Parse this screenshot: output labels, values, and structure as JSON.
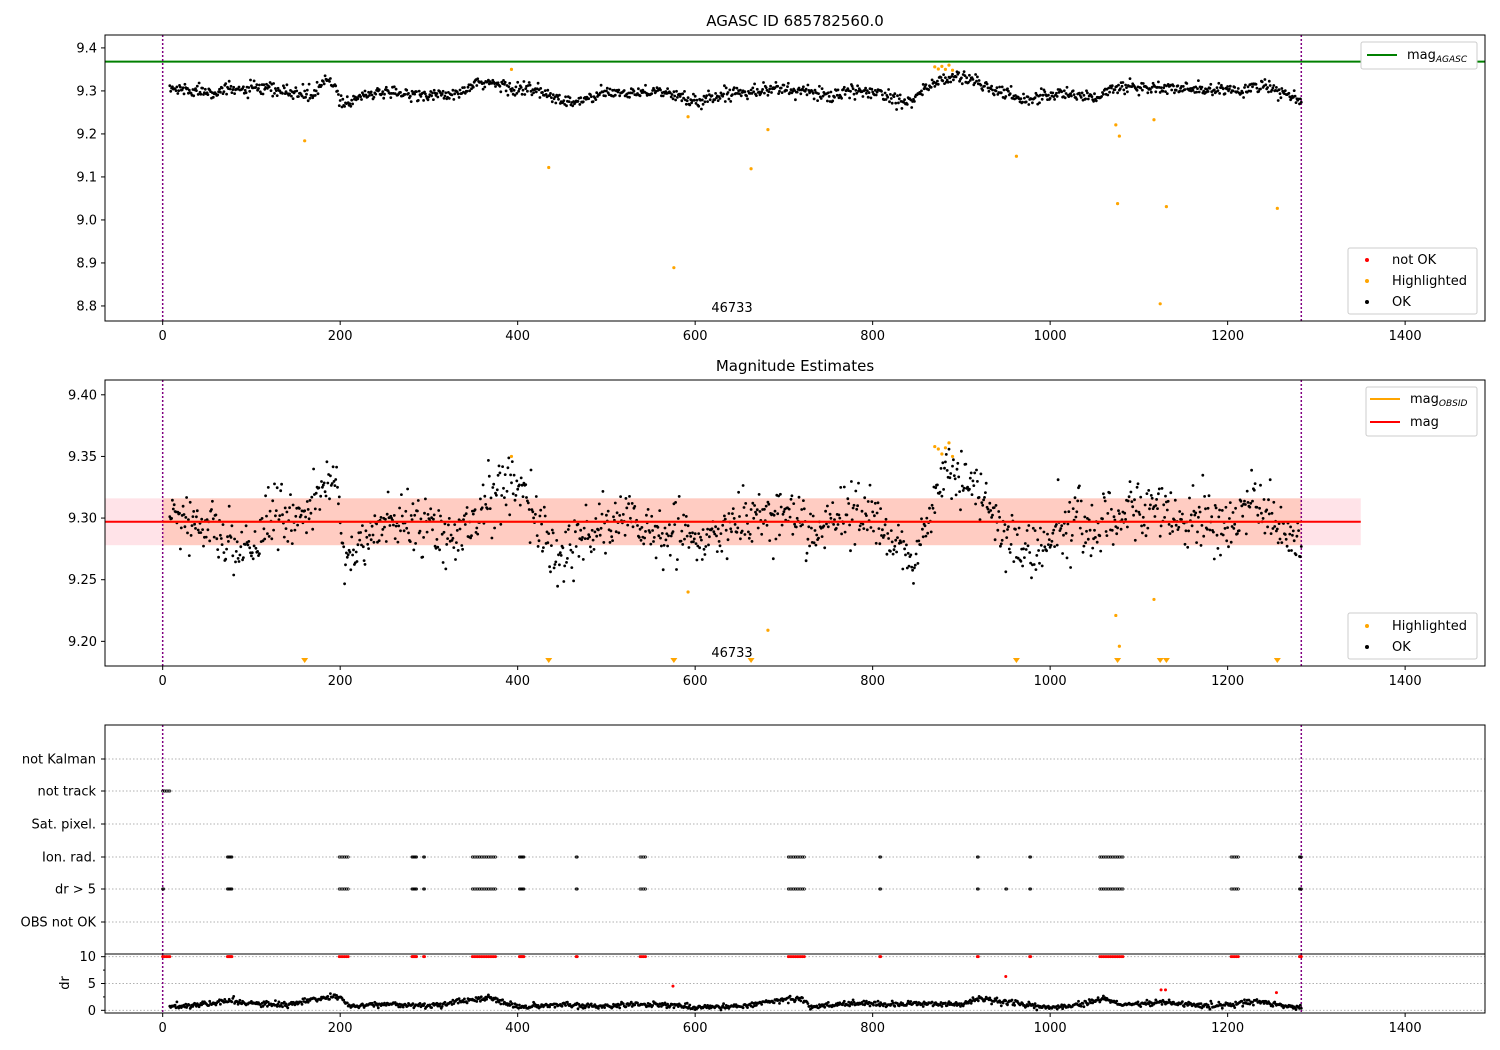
{
  "chart_data": [
    {
      "type": "scatter",
      "title": "AGASC ID 685782560.0",
      "xlim": [
        -65,
        1490
      ],
      "ylim": [
        8.765,
        9.43
      ],
      "xticks": [
        0,
        200,
        400,
        600,
        800,
        1000,
        1200,
        1400
      ],
      "yticks": [
        8.8,
        8.9,
        9.0,
        9.1,
        9.2,
        9.3,
        9.4
      ],
      "obs_boundaries": [
        0,
        1283
      ],
      "obs_label": {
        "text": "46733",
        "x": 640,
        "y": 8.78
      },
      "hlines": [
        {
          "name": "mag_AGASC",
          "y": 9.368,
          "color": "#008000"
        }
      ],
      "ok_series": {
        "name": "OK",
        "color": "#000000",
        "segments": [
          [
            5,
            9.305,
            0.01
          ],
          [
            60,
            9.3,
            0.01
          ],
          [
            110,
            9.305,
            0.01
          ],
          [
            170,
            9.29,
            0.01
          ],
          [
            185,
            9.33,
            0.008
          ],
          [
            205,
            9.27,
            0.01
          ],
          [
            230,
            9.295,
            0.008
          ],
          [
            330,
            9.29,
            0.008
          ],
          [
            360,
            9.32,
            0.01
          ],
          [
            420,
            9.3,
            0.012
          ],
          [
            460,
            9.27,
            0.01
          ],
          [
            500,
            9.295,
            0.008
          ],
          [
            560,
            9.3,
            0.008
          ],
          [
            600,
            9.275,
            0.01
          ],
          [
            650,
            9.3,
            0.01
          ],
          [
            700,
            9.305,
            0.01
          ],
          [
            750,
            9.29,
            0.01
          ],
          [
            800,
            9.3,
            0.01
          ],
          [
            840,
            9.275,
            0.01
          ],
          [
            870,
            9.32,
            0.01
          ],
          [
            900,
            9.335,
            0.01
          ],
          [
            940,
            9.3,
            0.01
          ],
          [
            970,
            9.28,
            0.01
          ],
          [
            1010,
            9.295,
            0.01
          ],
          [
            1050,
            9.285,
            0.01
          ],
          [
            1080,
            9.31,
            0.01
          ],
          [
            1140,
            9.305,
            0.01
          ],
          [
            1200,
            9.3,
            0.01
          ],
          [
            1240,
            9.31,
            0.01
          ],
          [
            1270,
            9.29,
            0.01
          ],
          [
            1283,
            9.27,
            0.008
          ]
        ]
      },
      "not_ok_series": {
        "name": "not OK",
        "color": "#ff0000",
        "points": []
      },
      "highlighted_series": {
        "name": "Highlighted",
        "color": "#ffa500",
        "points": [
          [
            160,
            9.184
          ],
          [
            393,
            9.35
          ],
          [
            435,
            9.122
          ],
          [
            576,
            8.889
          ],
          [
            592,
            9.24
          ],
          [
            663,
            9.119
          ],
          [
            682,
            9.21
          ],
          [
            870,
            9.356
          ],
          [
            874,
            9.351
          ],
          [
            878,
            9.357
          ],
          [
            882,
            9.35
          ],
          [
            886,
            9.36
          ],
          [
            890,
            9.348
          ],
          [
            962,
            9.148
          ],
          [
            1074,
            9.221
          ],
          [
            1076,
            9.038
          ],
          [
            1078,
            9.195
          ],
          [
            1117,
            9.233
          ],
          [
            1124,
            8.805
          ],
          [
            1131,
            9.031
          ],
          [
            1256,
            9.027
          ]
        ]
      },
      "legends": [
        {
          "position": "upper right",
          "entries": [
            {
              "label": "mag",
              "sub": "AGASC",
              "color": "#008000",
              "kind": "line"
            }
          ]
        },
        {
          "position": "lower right",
          "entries": [
            {
              "label": "not OK",
              "color": "#ff0000",
              "kind": "marker"
            },
            {
              "label": "Highlighted",
              "color": "#ffa500",
              "kind": "marker"
            },
            {
              "label": "OK",
              "color": "#000000",
              "kind": "marker"
            }
          ]
        }
      ]
    },
    {
      "type": "scatter",
      "title": "Magnitude Estimates",
      "xlim": [
        -65,
        1490
      ],
      "ylim": [
        9.18,
        9.412
      ],
      "xticks": [
        0,
        200,
        400,
        600,
        800,
        1000,
        1200,
        1400
      ],
      "yticks": [
        9.2,
        9.25,
        9.3,
        9.35,
        9.4
      ],
      "obs_boundaries": [
        0,
        1283
      ],
      "obs_label": {
        "text": "46733",
        "x": 640,
        "y": 9.19
      },
      "mag_line": {
        "name": "mag",
        "y": 9.297,
        "x_range": [
          -65,
          1350
        ],
        "color": "#ff0000"
      },
      "mag_obsid_line": {
        "name": "mag_OBSID",
        "y": 9.297,
        "x_range": [
          0,
          1283
        ],
        "color": "#ffa500"
      },
      "band_mag": {
        "y_range": [
          9.278,
          9.316
        ],
        "x_range": [
          -65,
          1350
        ],
        "color": "#ffc0cb"
      },
      "band_obsid": {
        "y_range": [
          9.278,
          9.316
        ],
        "x_range": [
          0,
          1283
        ],
        "color": "#ffa07a"
      },
      "ok_series": {
        "name": "OK",
        "color": "#000000",
        "segments": [
          [
            5,
            9.305,
            0.012
          ],
          [
            40,
            9.295,
            0.012
          ],
          [
            80,
            9.278,
            0.01
          ],
          [
            100,
            9.27,
            0.008
          ],
          [
            120,
            9.305,
            0.012
          ],
          [
            150,
            9.3,
            0.01
          ],
          [
            175,
            9.32,
            0.01
          ],
          [
            195,
            9.335,
            0.008
          ],
          [
            205,
            9.262,
            0.008
          ],
          [
            240,
            9.295,
            0.01
          ],
          [
            280,
            9.3,
            0.012
          ],
          [
            320,
            9.285,
            0.012
          ],
          [
            350,
            9.29,
            0.01
          ],
          [
            370,
            9.32,
            0.015
          ],
          [
            405,
            9.33,
            0.01
          ],
          [
            430,
            9.285,
            0.012
          ],
          [
            450,
            9.265,
            0.01
          ],
          [
            470,
            9.285,
            0.01
          ],
          [
            520,
            9.3,
            0.01
          ],
          [
            580,
            9.285,
            0.012
          ],
          [
            620,
            9.28,
            0.012
          ],
          [
            660,
            9.3,
            0.012
          ],
          [
            700,
            9.305,
            0.012
          ],
          [
            730,
            9.29,
            0.012
          ],
          [
            760,
            9.3,
            0.01
          ],
          [
            790,
            9.305,
            0.012
          ],
          [
            830,
            9.28,
            0.01
          ],
          [
            845,
            9.258,
            0.006
          ],
          [
            880,
            9.335,
            0.01
          ],
          [
            910,
            9.33,
            0.01
          ],
          [
            940,
            9.3,
            0.012
          ],
          [
            960,
            9.28,
            0.012
          ],
          [
            985,
            9.27,
            0.012
          ],
          [
            1020,
            9.3,
            0.012
          ],
          [
            1050,
            9.29,
            0.012
          ],
          [
            1080,
            9.31,
            0.012
          ],
          [
            1120,
            9.305,
            0.012
          ],
          [
            1160,
            9.3,
            0.012
          ],
          [
            1200,
            9.295,
            0.012
          ],
          [
            1230,
            9.315,
            0.012
          ],
          [
            1260,
            9.29,
            0.01
          ],
          [
            1283,
            9.275,
            0.01
          ]
        ]
      },
      "highlighted_series": {
        "name": "Highlighted",
        "color": "#ffa500",
        "points": [
          [
            393,
            9.35
          ],
          [
            592,
            9.24
          ],
          [
            682,
            9.209
          ],
          [
            870,
            9.358
          ],
          [
            874,
            9.356
          ],
          [
            878,
            9.352
          ],
          [
            882,
            9.357
          ],
          [
            886,
            9.361
          ],
          [
            890,
            9.35
          ],
          [
            1074,
            9.221
          ],
          [
            1078,
            9.196
          ],
          [
            1117,
            9.234
          ]
        ]
      },
      "below_range_markers": {
        "color": "#ffa500",
        "x": [
          160,
          435,
          576,
          663,
          962,
          1076,
          1124,
          1131,
          1256
        ]
      },
      "legends": [
        {
          "position": "upper right",
          "entries": [
            {
              "label": "mag",
              "sub": "OBSID",
              "color": "#ffa500",
              "kind": "line"
            },
            {
              "label": "mag",
              "color": "#ff0000",
              "kind": "line"
            }
          ]
        },
        {
          "position": "lower right",
          "entries": [
            {
              "label": "Highlighted",
              "color": "#ffa500",
              "kind": "marker"
            },
            {
              "label": "OK",
              "color": "#000000",
              "kind": "marker"
            }
          ]
        }
      ]
    },
    {
      "type": "scatter",
      "xlim": [
        -65,
        1490
      ],
      "categories": [
        "not Kalman",
        "not track",
        "Sat. pixel.",
        "Ion. rad.",
        "dr > 5",
        "OBS not OK"
      ],
      "obs_boundaries": [
        0,
        1283
      ],
      "flag_runs": {
        "not track": [
          [
            0,
            8
          ]
        ],
        "Sat. pixel.": [],
        "Ion. rad.": [
          [
            73,
            78
          ],
          [
            199,
            210
          ],
          [
            281,
            286
          ],
          [
            294,
            295
          ],
          [
            349,
            376
          ],
          [
            402,
            407
          ],
          [
            466,
            467
          ],
          [
            538,
            545
          ],
          [
            705,
            723
          ],
          [
            808,
            809
          ],
          [
            918,
            919
          ],
          [
            977,
            978
          ],
          [
            1056,
            1082
          ],
          [
            1204,
            1212
          ],
          [
            1281,
            1283
          ]
        ],
        "dr > 5": [
          [
            0,
            1
          ],
          [
            73,
            78
          ],
          [
            199,
            210
          ],
          [
            281,
            286
          ],
          [
            294,
            295
          ],
          [
            349,
            376
          ],
          [
            402,
            407
          ],
          [
            466,
            467
          ],
          [
            538,
            545
          ],
          [
            705,
            723
          ],
          [
            808,
            809
          ],
          [
            918,
            919
          ],
          [
            950,
            951
          ],
          [
            977,
            978
          ],
          [
            1056,
            1082
          ],
          [
            1204,
            1212
          ],
          [
            1281,
            1283
          ]
        ],
        "OBS not OK": [],
        "not Kalman": []
      },
      "gridline_color": "#b0b0b0"
    },
    {
      "type": "scatter",
      "ylabel": "dr",
      "xlim": [
        -65,
        1490
      ],
      "ylim": [
        -0.5,
        10.5
      ],
      "xticks": [
        0,
        200,
        400,
        600,
        800,
        1000,
        1200,
        1400
      ],
      "yticks": [
        0,
        5,
        10
      ],
      "obs_boundaries": [
        0,
        1283
      ],
      "dr_series": {
        "name": "dr",
        "color": "#000000",
        "segments": [
          [
            10,
            0.6
          ],
          [
            60,
            1.4
          ],
          [
            80,
            1.8
          ],
          [
            100,
            1.2
          ],
          [
            140,
            1.0
          ],
          [
            180,
            2.2
          ],
          [
            200,
            2.6
          ],
          [
            210,
            0.8
          ],
          [
            250,
            1.2
          ],
          [
            300,
            0.8
          ],
          [
            350,
            2.0
          ],
          [
            370,
            2.3
          ],
          [
            400,
            0.6
          ],
          [
            450,
            1.0
          ],
          [
            500,
            0.8
          ],
          [
            560,
            1.2
          ],
          [
            600,
            0.5
          ],
          [
            650,
            0.8
          ],
          [
            700,
            2.0
          ],
          [
            720,
            2.2
          ],
          [
            730,
            0.6
          ],
          [
            780,
            1.4
          ],
          [
            820,
            1.1
          ],
          [
            860,
            1.3
          ],
          [
            900,
            1.1
          ],
          [
            920,
            2.2
          ],
          [
            960,
            1.2
          ],
          [
            1000,
            0.5
          ],
          [
            1040,
            1.2
          ],
          [
            1060,
            2.2
          ],
          [
            1080,
            1.0
          ],
          [
            1130,
            1.5
          ],
          [
            1180,
            0.8
          ],
          [
            1210,
            1.2
          ],
          [
            1230,
            1.8
          ],
          [
            1260,
            0.8
          ],
          [
            1283,
            0.6
          ]
        ]
      },
      "red_points": [
        [
          575,
          4.5
        ],
        [
          950,
          6.3
        ],
        [
          1125,
          3.8
        ],
        [
          1130,
          3.8
        ],
        [
          1255,
          3.3
        ]
      ],
      "red_runs_top": [
        [
          0,
          8
        ],
        [
          73,
          78
        ],
        [
          199,
          210
        ],
        [
          281,
          286
        ],
        [
          294,
          295
        ],
        [
          349,
          376
        ],
        [
          402,
          407
        ],
        [
          466,
          467
        ],
        [
          538,
          545
        ],
        [
          705,
          723
        ],
        [
          808,
          809
        ],
        [
          918,
          919
        ],
        [
          977,
          978
        ],
        [
          1056,
          1082
        ],
        [
          1204,
          1212
        ],
        [
          1281,
          1283
        ]
      ]
    }
  ]
}
